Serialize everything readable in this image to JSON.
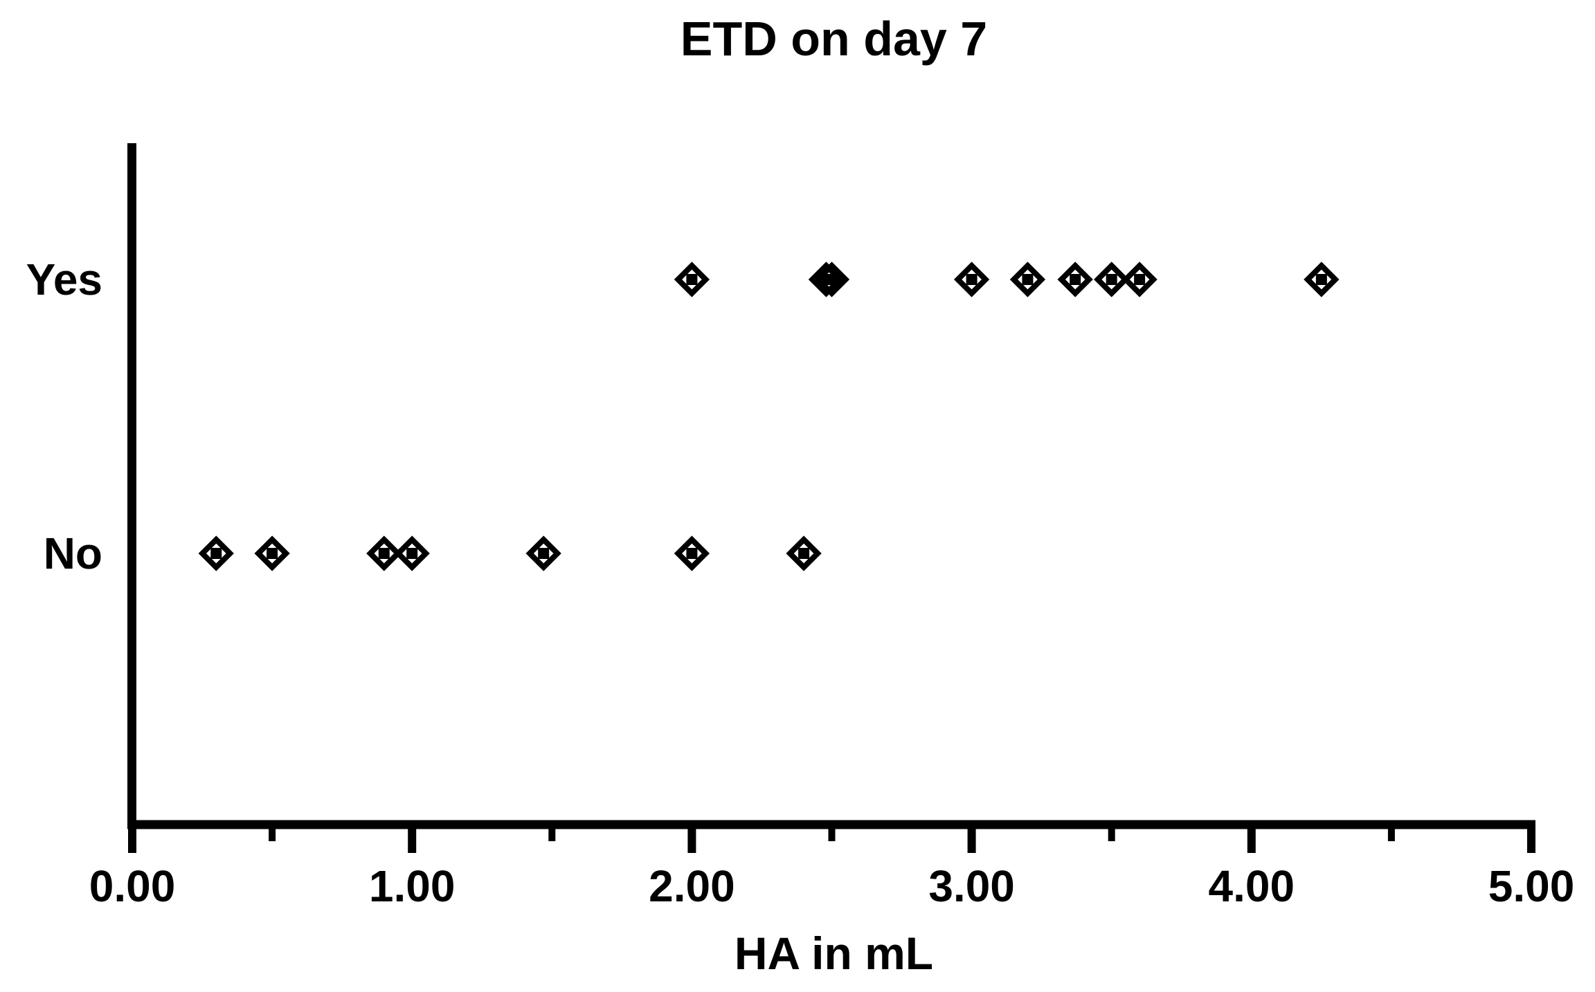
{
  "figure": {
    "title": "ETD on day 7",
    "x_axis_label": "HA in mL"
  },
  "chart_data": {
    "type": "scatter",
    "title": "ETD on day 7",
    "xlabel": "HA in mL",
    "ylabel": "",
    "xlim": [
      0.0,
      5.0
    ],
    "x_major_tick_labels": [
      "0.00",
      "1.00",
      "2.00",
      "3.00",
      "4.00",
      "5.00"
    ],
    "x_major_tick_values": [
      0.0,
      1.0,
      2.0,
      3.0,
      4.0,
      5.0
    ],
    "x_minor_tick_values": [
      0.5,
      1.5,
      2.5,
      3.5,
      4.5
    ],
    "categories": [
      "Yes",
      "No"
    ],
    "series": [
      {
        "name": "Yes",
        "values": [
          2.0,
          2.48,
          2.5,
          3.0,
          3.2,
          3.37,
          3.5,
          3.6,
          4.25
        ]
      },
      {
        "name": "No",
        "values": [
          0.3,
          0.5,
          0.9,
          1.0,
          1.47,
          2.0,
          2.4
        ]
      }
    ],
    "marker": {
      "shape": "open-diamond-with-center-dot",
      "color": "#000000"
    },
    "grid": false,
    "legend": "none",
    "axis_color": "#000000",
    "background": "#ffffff"
  }
}
